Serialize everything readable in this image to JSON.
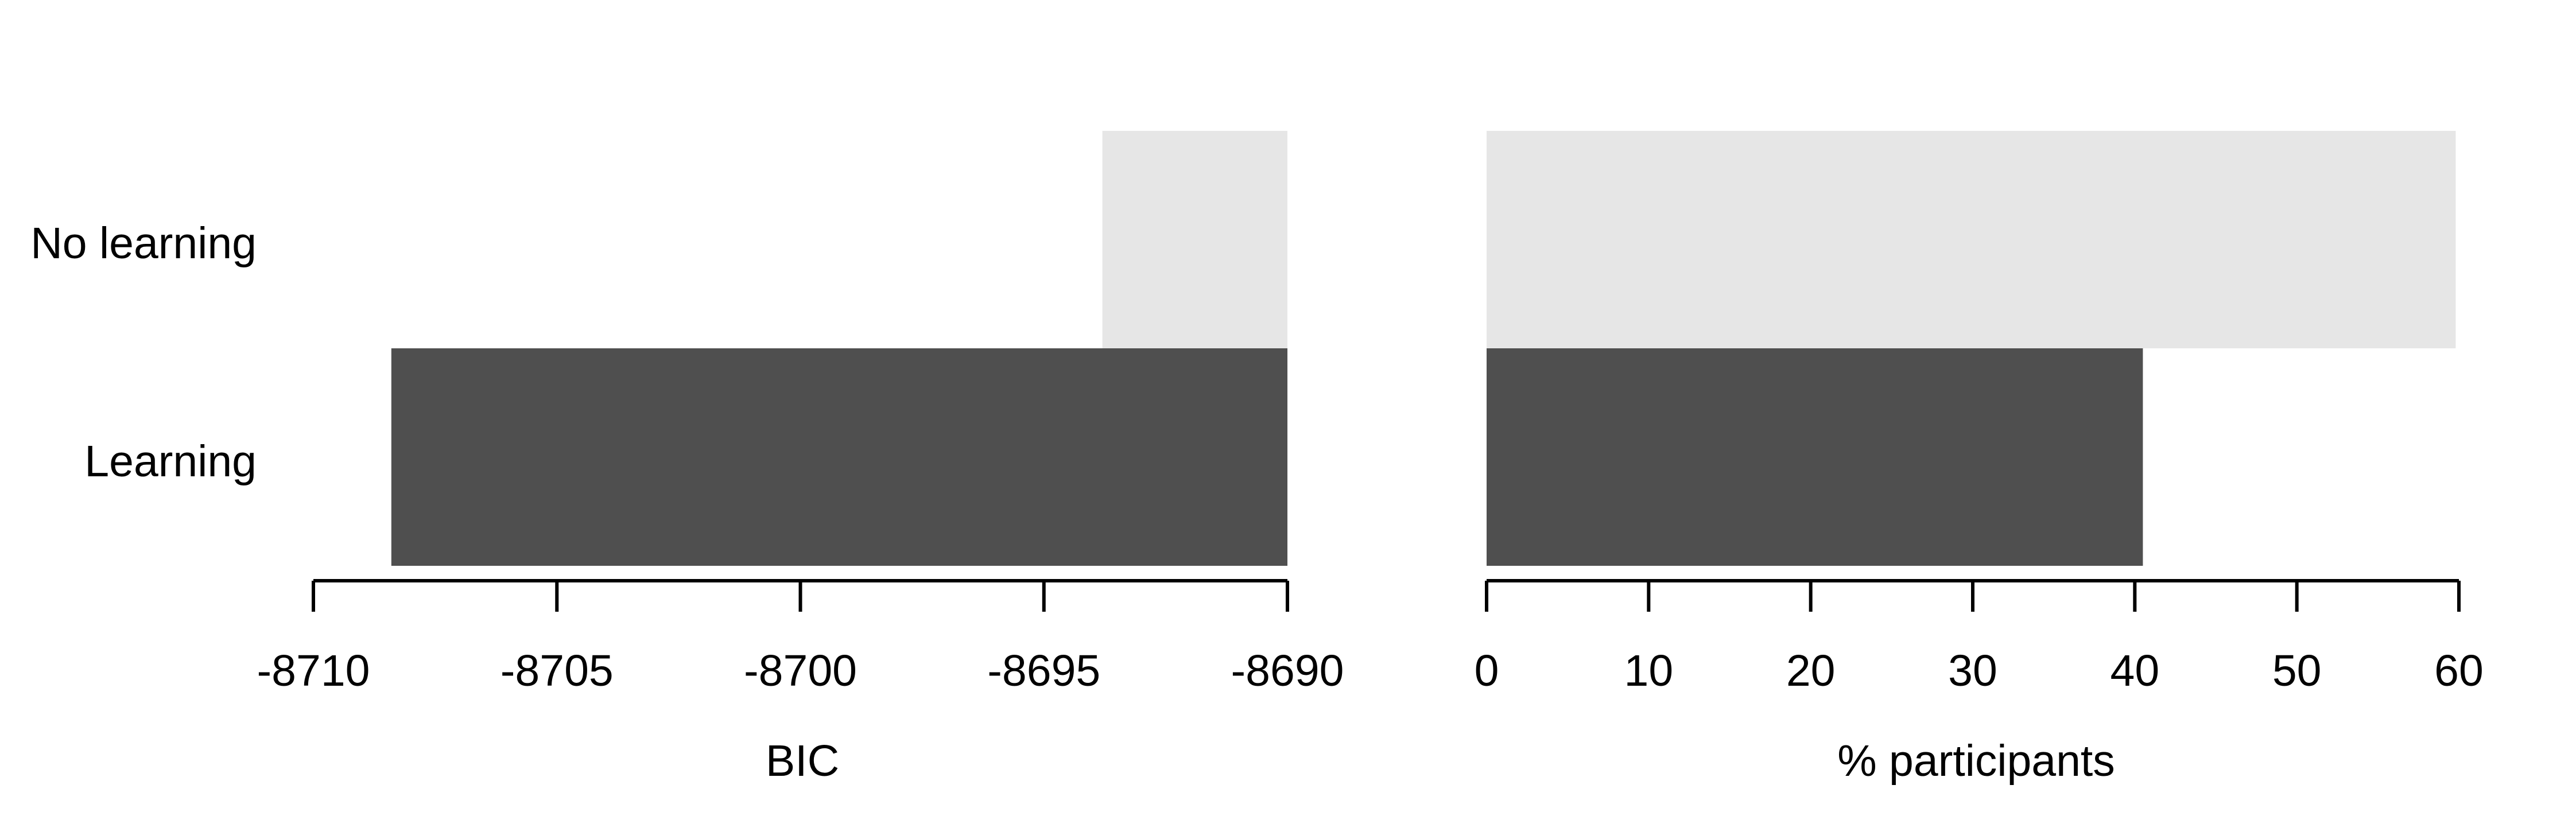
{
  "chart_data": [
    {
      "type": "bar",
      "orientation": "horizontal",
      "categories": [
        "No learning",
        "Learning"
      ],
      "values": [
        -8693.8,
        -8708.4
      ],
      "bar_colors": [
        "#e6e6e6",
        "#4f4f4f"
      ],
      "xlim": [
        -8710,
        -8690
      ],
      "xticks": [
        -8710,
        -8705,
        -8700,
        -8695,
        -8690
      ],
      "xlabel": "BIC",
      "bar_base": "-8690",
      "grid": false,
      "legend": "none"
    },
    {
      "type": "bar",
      "orientation": "horizontal",
      "categories": [
        "No learning",
        "Learning"
      ],
      "values": [
        59.8,
        40.5
      ],
      "bar_colors": [
        "#e6e6e6",
        "#4f4f4f"
      ],
      "xlim": [
        0,
        60
      ],
      "xticks": [
        0,
        10,
        20,
        30,
        40,
        50,
        60
      ],
      "xlabel": "% participants",
      "bar_base": "0",
      "grid": false,
      "legend": "none"
    }
  ]
}
